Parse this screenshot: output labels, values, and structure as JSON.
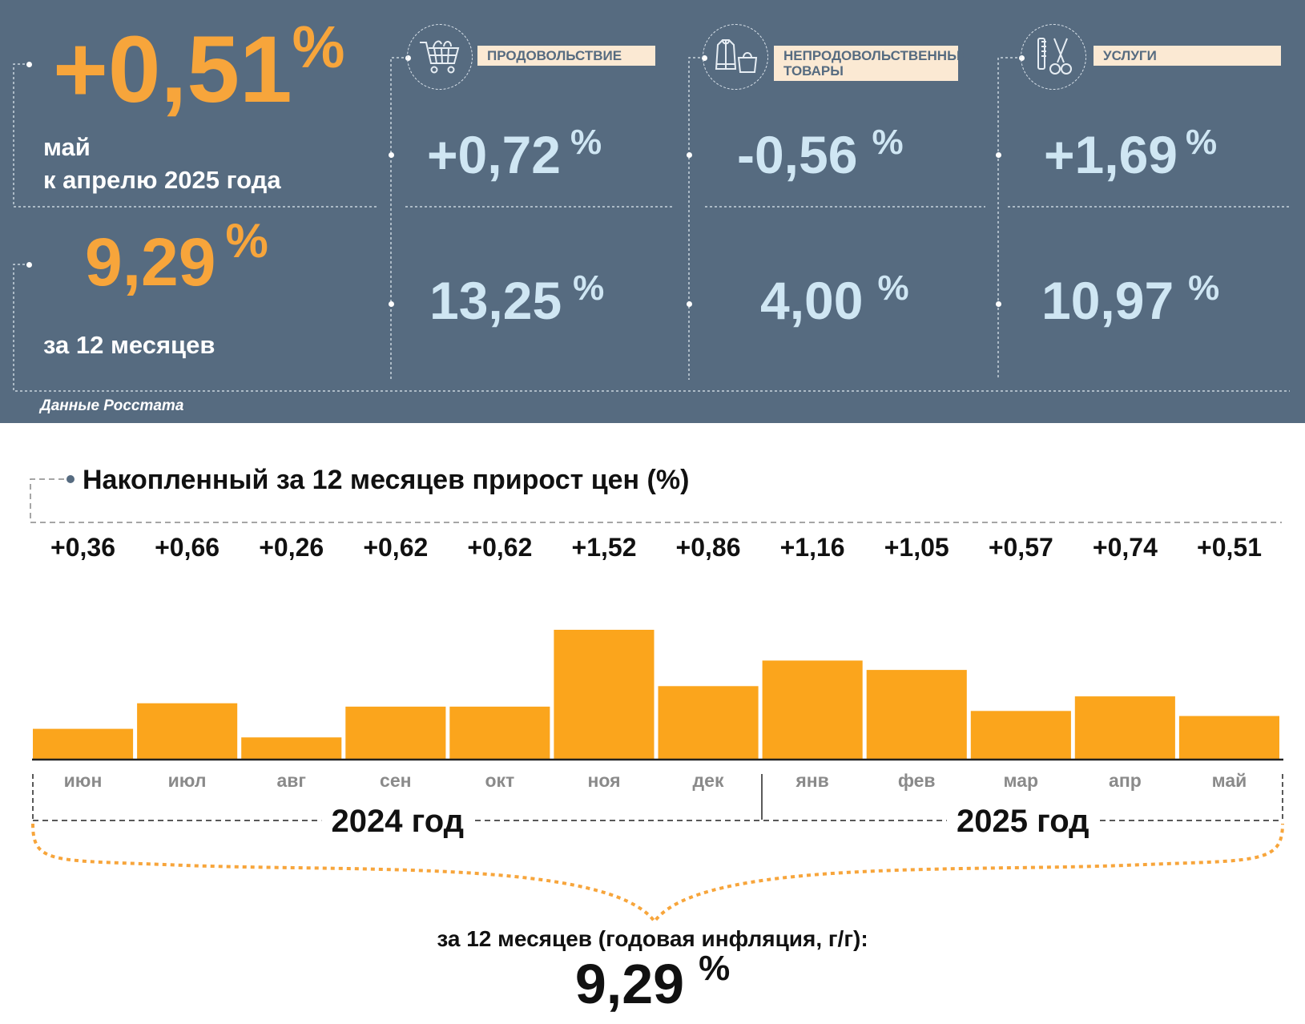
{
  "header": {
    "monthly": {
      "value": "+0,51",
      "unit": "%",
      "label_line1": "май",
      "label_line2": "к апрелю 2025 года"
    },
    "annual": {
      "value": "9,29",
      "unit": "%",
      "label": "за 12 месяцев"
    },
    "source": "Данные Росстата",
    "categories": [
      {
        "label": "ПРОДОВОЛЬСТВИЕ",
        "icon": "shopping-cart-icon",
        "monthly": "+0,72",
        "annual": "13,25",
        "unit": "%"
      },
      {
        "label_line1": "НЕПРОДОВОЛЬСТВЕННЫЕ",
        "label_line2": "ТОВАРЫ",
        "icon": "clothing-bag-icon",
        "monthly": "-0,56",
        "annual": "4,00",
        "unit": "%"
      },
      {
        "label": "УСЛУГИ",
        "icon": "comb-scissors-icon",
        "monthly": "+1,69",
        "annual": "10,97",
        "unit": "%"
      }
    ]
  },
  "colors": {
    "panel": "#566b80",
    "orange": "#f7a53b",
    "bar": "#fba51c",
    "light_blue": "#cfe6f3",
    "label_bg": "#fbe9d3"
  },
  "chart_data": {
    "type": "bar",
    "title": "Накопленный за 12 месяцев прирост цен (%)",
    "categories": [
      "июн",
      "июл",
      "авг",
      "сен",
      "окт",
      "ноя",
      "дек",
      "янв",
      "фев",
      "мар",
      "апр",
      "май"
    ],
    "values": [
      0.36,
      0.66,
      0.26,
      0.62,
      0.62,
      1.52,
      0.86,
      1.16,
      1.05,
      0.57,
      0.74,
      0.51
    ],
    "value_labels": [
      "+0,36",
      "+0,66",
      "+0,26",
      "+0,62",
      "+0,62",
      "+1,52",
      "+0,86",
      "+1,16",
      "+1,05",
      "+0,57",
      "+0,74",
      "+0,51"
    ],
    "groups": [
      {
        "label": "2024 год",
        "span": [
          0,
          6
        ]
      },
      {
        "label": "2025 год",
        "span": [
          7,
          11
        ]
      }
    ],
    "ylim": [
      0,
      1.52
    ],
    "grid": false,
    "annual_label": "за 12 месяцев (годовая инфляция, г/г):",
    "annual_value": "9,29",
    "annual_unit": "%"
  }
}
